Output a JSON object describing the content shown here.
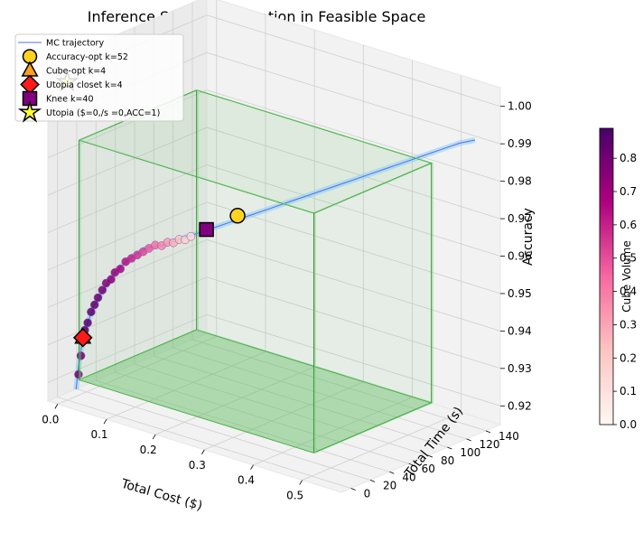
{
  "chart_data": {
    "type": "scatter",
    "title": "Inference Scale Optimization in Feasible Space",
    "xlabel": "Total Cost ($)",
    "ylabel": "Total Time (s)",
    "zlabel": "Accuracy",
    "xlim": [
      -0.02,
      0.58
    ],
    "ylim": [
      -10,
      155
    ],
    "zlim": [
      0.915,
      1.005
    ],
    "x_ticks": [
      "0.0",
      "0.1",
      "0.2",
      "0.3",
      "0.4",
      "0.5"
    ],
    "y_ticks": [
      "0",
      "20",
      "40",
      "60",
      "80",
      "100",
      "120",
      "140"
    ],
    "z_ticks": [
      "0.92",
      "0.93",
      "0.94",
      "0.95",
      "0.96",
      "0.97",
      "0.98",
      "0.99",
      "1.00"
    ],
    "feasible_box": {
      "cost": [
        0.02,
        0.5
      ],
      "time": [
        2,
        124
      ],
      "accuracy": [
        0.921,
        0.985
      ]
    },
    "colorbar": {
      "label": "Cube Volume",
      "min": 0.0,
      "max": 0.89,
      "ticks": [
        "0.0",
        "0.1",
        "0.2",
        "0.3",
        "0.4",
        "0.5",
        "0.6",
        "0.7",
        "0.8"
      ],
      "colors": [
        "#fff7f3",
        "#fcc5c0",
        "#f768a1",
        "#ae017e",
        "#49006a"
      ]
    },
    "legend": {
      "position": "top-left",
      "entries": [
        {
          "label": "MC trajectory",
          "marker": "line",
          "color": "#5b6ee1"
        },
        {
          "label": "Accuracy-opt k=52",
          "marker": "circle",
          "color": "#ffd21f"
        },
        {
          "label": "Cube-opt k=4",
          "marker": "triangle",
          "color": "#ff9f1a"
        },
        {
          "label": "Utopia closet k=4",
          "marker": "diamond",
          "color": "#ff1a1a"
        },
        {
          "label": "Knee k=40",
          "marker": "square",
          "color": "#800080"
        },
        {
          "label": "Utopia ($=0,/s =0,ACC=1)",
          "marker": "star",
          "color": "#ffff33"
        }
      ]
    },
    "scatter_points": [
      {
        "cost": 0.015,
        "time": 4,
        "accuracy": 0.922,
        "volume": 0.8
      },
      {
        "cost": 0.018,
        "time": 5,
        "accuracy": 0.927,
        "volume": 0.82
      },
      {
        "cost": 0.021,
        "time": 5,
        "accuracy": 0.931,
        "volume": 0.84
      },
      {
        "cost": 0.024,
        "time": 6,
        "accuracy": 0.934,
        "volume": 0.86
      },
      {
        "cost": 0.028,
        "time": 7,
        "accuracy": 0.936,
        "volume": 0.86
      },
      {
        "cost": 0.033,
        "time": 8,
        "accuracy": 0.939,
        "volume": 0.85
      },
      {
        "cost": 0.038,
        "time": 9,
        "accuracy": 0.941,
        "volume": 0.84
      },
      {
        "cost": 0.043,
        "time": 10,
        "accuracy": 0.943,
        "volume": 0.82
      },
      {
        "cost": 0.048,
        "time": 12,
        "accuracy": 0.945,
        "volume": 0.8
      },
      {
        "cost": 0.054,
        "time": 13,
        "accuracy": 0.947,
        "volume": 0.77
      },
      {
        "cost": 0.06,
        "time": 15,
        "accuracy": 0.948,
        "volume": 0.74
      },
      {
        "cost": 0.066,
        "time": 16,
        "accuracy": 0.95,
        "volume": 0.72
      },
      {
        "cost": 0.073,
        "time": 18,
        "accuracy": 0.951,
        "volume": 0.68
      },
      {
        "cost": 0.08,
        "time": 20,
        "accuracy": 0.953,
        "volume": 0.64
      },
      {
        "cost": 0.088,
        "time": 22,
        "accuracy": 0.954,
        "volume": 0.6
      },
      {
        "cost": 0.096,
        "time": 24,
        "accuracy": 0.955,
        "volume": 0.56
      },
      {
        "cost": 0.104,
        "time": 26,
        "accuracy": 0.956,
        "volume": 0.52
      },
      {
        "cost": 0.112,
        "time": 28,
        "accuracy": 0.957,
        "volume": 0.47
      },
      {
        "cost": 0.121,
        "time": 30,
        "accuracy": 0.958,
        "volume": 0.42
      },
      {
        "cost": 0.13,
        "time": 32,
        "accuracy": 0.958,
        "volume": 0.37
      },
      {
        "cost": 0.138,
        "time": 34,
        "accuracy": 0.959,
        "volume": 0.32
      },
      {
        "cost": 0.146,
        "time": 36,
        "accuracy": 0.959,
        "volume": 0.27
      },
      {
        "cost": 0.154,
        "time": 38,
        "accuracy": 0.96,
        "volume": 0.22
      },
      {
        "cost": 0.162,
        "time": 40,
        "accuracy": 0.96,
        "volume": 0.17
      },
      {
        "cost": 0.17,
        "time": 42,
        "accuracy": 0.961,
        "volume": 0.12
      }
    ],
    "trajectory": [
      {
        "cost": 0.012,
        "time": 3,
        "accuracy": 0.918
      },
      {
        "cost": 0.016,
        "time": 4,
        "accuracy": 0.925
      },
      {
        "cost": 0.021,
        "time": 5,
        "accuracy": 0.931
      },
      {
        "cost": 0.028,
        "time": 7,
        "accuracy": 0.936
      },
      {
        "cost": 0.038,
        "time": 9,
        "accuracy": 0.941
      },
      {
        "cost": 0.05,
        "time": 12,
        "accuracy": 0.945
      },
      {
        "cost": 0.066,
        "time": 16,
        "accuracy": 0.95
      },
      {
        "cost": 0.086,
        "time": 21,
        "accuracy": 0.954
      },
      {
        "cost": 0.108,
        "time": 27,
        "accuracy": 0.957
      },
      {
        "cost": 0.13,
        "time": 32,
        "accuracy": 0.958
      },
      {
        "cost": 0.154,
        "time": 38,
        "accuracy": 0.96
      },
      {
        "cost": 0.18,
        "time": 45,
        "accuracy": 0.962
      },
      {
        "cost": 0.205,
        "time": 51,
        "accuracy": 0.964
      },
      {
        "cost": 0.23,
        "time": 58,
        "accuracy": 0.966
      },
      {
        "cost": 0.255,
        "time": 64,
        "accuracy": 0.968
      },
      {
        "cost": 0.28,
        "time": 70,
        "accuracy": 0.97
      },
      {
        "cost": 0.305,
        "time": 77,
        "accuracy": 0.972
      },
      {
        "cost": 0.33,
        "time": 83,
        "accuracy": 0.974
      },
      {
        "cost": 0.355,
        "time": 90,
        "accuracy": 0.976
      },
      {
        "cost": 0.38,
        "time": 96,
        "accuracy": 0.978
      },
      {
        "cost": 0.405,
        "time": 103,
        "accuracy": 0.98
      },
      {
        "cost": 0.43,
        "time": 110,
        "accuracy": 0.982
      },
      {
        "cost": 0.455,
        "time": 117,
        "accuracy": 0.984
      },
      {
        "cost": 0.48,
        "time": 124,
        "accuracy": 0.986
      },
      {
        "cost": 0.505,
        "time": 131,
        "accuracy": 0.988
      },
      {
        "cost": 0.53,
        "time": 138,
        "accuracy": 0.99
      },
      {
        "cost": 0.55,
        "time": 144,
        "accuracy": 0.991
      }
    ],
    "special_points": [
      {
        "label": "Accuracy-opt k=52",
        "marker": "circle",
        "cost": 0.23,
        "time": 60,
        "accuracy": 0.967
      },
      {
        "label": "Cube-opt k=4",
        "marker": "triangle",
        "cost": 0.022,
        "time": 5,
        "accuracy": 0.932
      },
      {
        "label": "Utopia closet k=4",
        "marker": "diamond",
        "cost": 0.022,
        "time": 5,
        "accuracy": 0.932
      },
      {
        "label": "Knee k=40",
        "marker": "square",
        "cost": 0.19,
        "time": 48,
        "accuracy": 0.963
      },
      {
        "label": "Utopia ($=0,/s =0,ACC=1)",
        "marker": "star",
        "cost": 0.0,
        "time": 0,
        "accuracy": 1.0
      }
    ]
  }
}
